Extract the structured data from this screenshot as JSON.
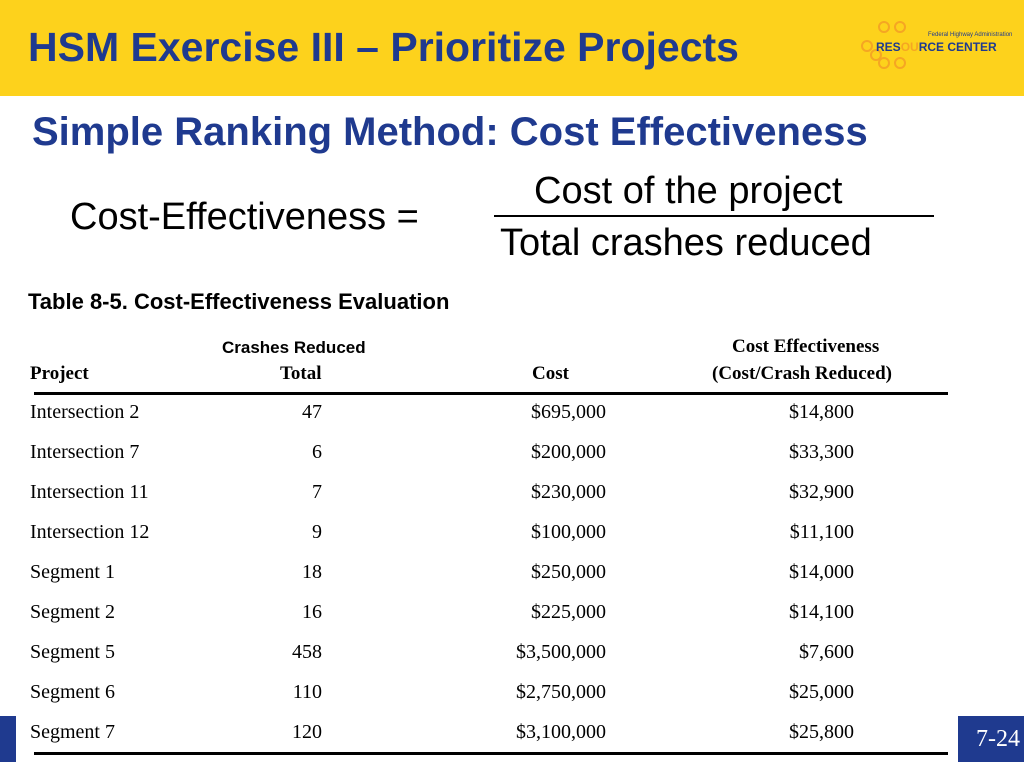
{
  "header": {
    "title": "HSM Exercise III – Prioritize Projects",
    "logo": {
      "small_text": "Federal Highway Administration",
      "main_text": "RESOURCE CENTER"
    }
  },
  "slide": {
    "subtitle": "Simple Ranking Method: Cost Effectiveness",
    "formula": {
      "label": "Cost-Effectiveness =",
      "numerator": "Cost of the project",
      "denominator": "Total crashes reduced"
    },
    "table_caption": "Table 8-5. Cost-Effectiveness Evaluation",
    "page_number": "7-24"
  },
  "table": {
    "overlay_header": "Crashes Reduced",
    "headers": {
      "project": "Project",
      "total": "Total",
      "cost": "Cost",
      "ce_line1": "Cost Effectiveness",
      "ce_line2": "(Cost/Crash Reduced)"
    },
    "rows": [
      {
        "project": "Intersection 2",
        "crashes": "47",
        "cost": "$695,000",
        "ce": "$14,800"
      },
      {
        "project": "Intersection 7",
        "crashes": "6",
        "cost": "$200,000",
        "ce": "$33,300"
      },
      {
        "project": "Intersection 11",
        "crashes": "7",
        "cost": "$230,000",
        "ce": "$32,900"
      },
      {
        "project": "Intersection 12",
        "crashes": "9",
        "cost": "$100,000",
        "ce": "$11,100"
      },
      {
        "project": "Segment 1",
        "crashes": "18",
        "cost": "$250,000",
        "ce": "$14,000"
      },
      {
        "project": "Segment 2",
        "crashes": "16",
        "cost": "$225,000",
        "ce": "$14,100"
      },
      {
        "project": "Segment 5",
        "crashes": "458",
        "cost": "$3,500,000",
        "ce": "$7,600"
      },
      {
        "project": "Segment 6",
        "crashes": "110",
        "cost": "$2,750,000",
        "ce": "$25,000"
      },
      {
        "project": "Segment 7",
        "crashes": "120",
        "cost": "$3,100,000",
        "ce": "$25,800"
      }
    ]
  },
  "colors": {
    "header_bg": "#fdd21c",
    "title_blue": "#1f3a8f",
    "logo_orange": "#f5a623",
    "footer_band": "#9bb7d6"
  }
}
